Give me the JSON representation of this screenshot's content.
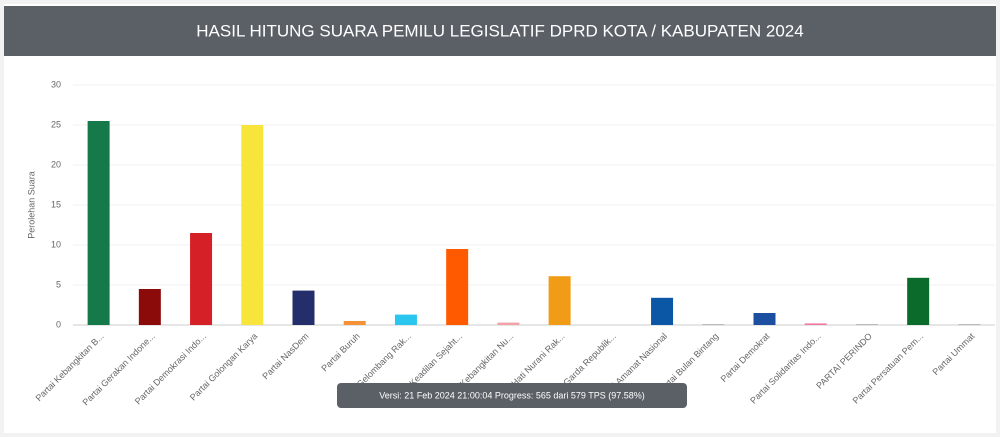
{
  "chart_data": {
    "type": "bar",
    "title": "HASIL HITUNG SUARA PEMILU LEGISLATIF DPRD KOTA / KABUPATEN 2024",
    "y_label": "Perolehan Suara",
    "categories": [
      "Partai Kebangkitan B...",
      "Partai Gerakan Indone...",
      "Partai Demokrasi Indo...",
      "Partai Golongan Karya",
      "Partai NasDem",
      "Partai Buruh",
      "Partai Gelombang Rak...",
      "Partai Keadilan Sejaht...",
      "Partai Kebangkitan Nu...",
      "Partai Hati Nurani Rak...",
      "Partai Garda Republik...",
      "Partai Amanat Nasional",
      "Partai Bulan Bintang",
      "Partai Demokrat",
      "Partai Solidaritas Indo...",
      "PARTAI PERINDO",
      "Partai Persatuan Pem...",
      "Partai Ummat"
    ],
    "values": [
      25.5,
      4.5,
      11.5,
      25,
      4.3,
      0.5,
      1.3,
      9.5,
      0.3,
      6.1,
      0,
      3.4,
      0.1,
      1.5,
      0.2,
      0.1,
      5.9,
      0.1
    ],
    "colors": [
      "#16794a",
      "#8b0a0a",
      "#d62027",
      "#f7e53b",
      "#232e6b",
      "#f39237",
      "#2bc6f0",
      "#ff5a00",
      "#f3a0a8",
      "#f09c17",
      "#9a6b3a",
      "#0b57a6",
      "#aaaaaa",
      "#1d4fa0",
      "#f07aa0",
      "#aaaaaa",
      "#0a6b2a",
      "#aaaaaa"
    ],
    "ylim": [
      0,
      30
    ],
    "yticks": [
      0,
      5,
      10,
      15,
      20,
      25,
      30
    ],
    "grid": true,
    "tooltip": "Versi: 21 Feb 2024 21:00:04 Progress: 565 dari 579 TPS (97.58%)"
  }
}
